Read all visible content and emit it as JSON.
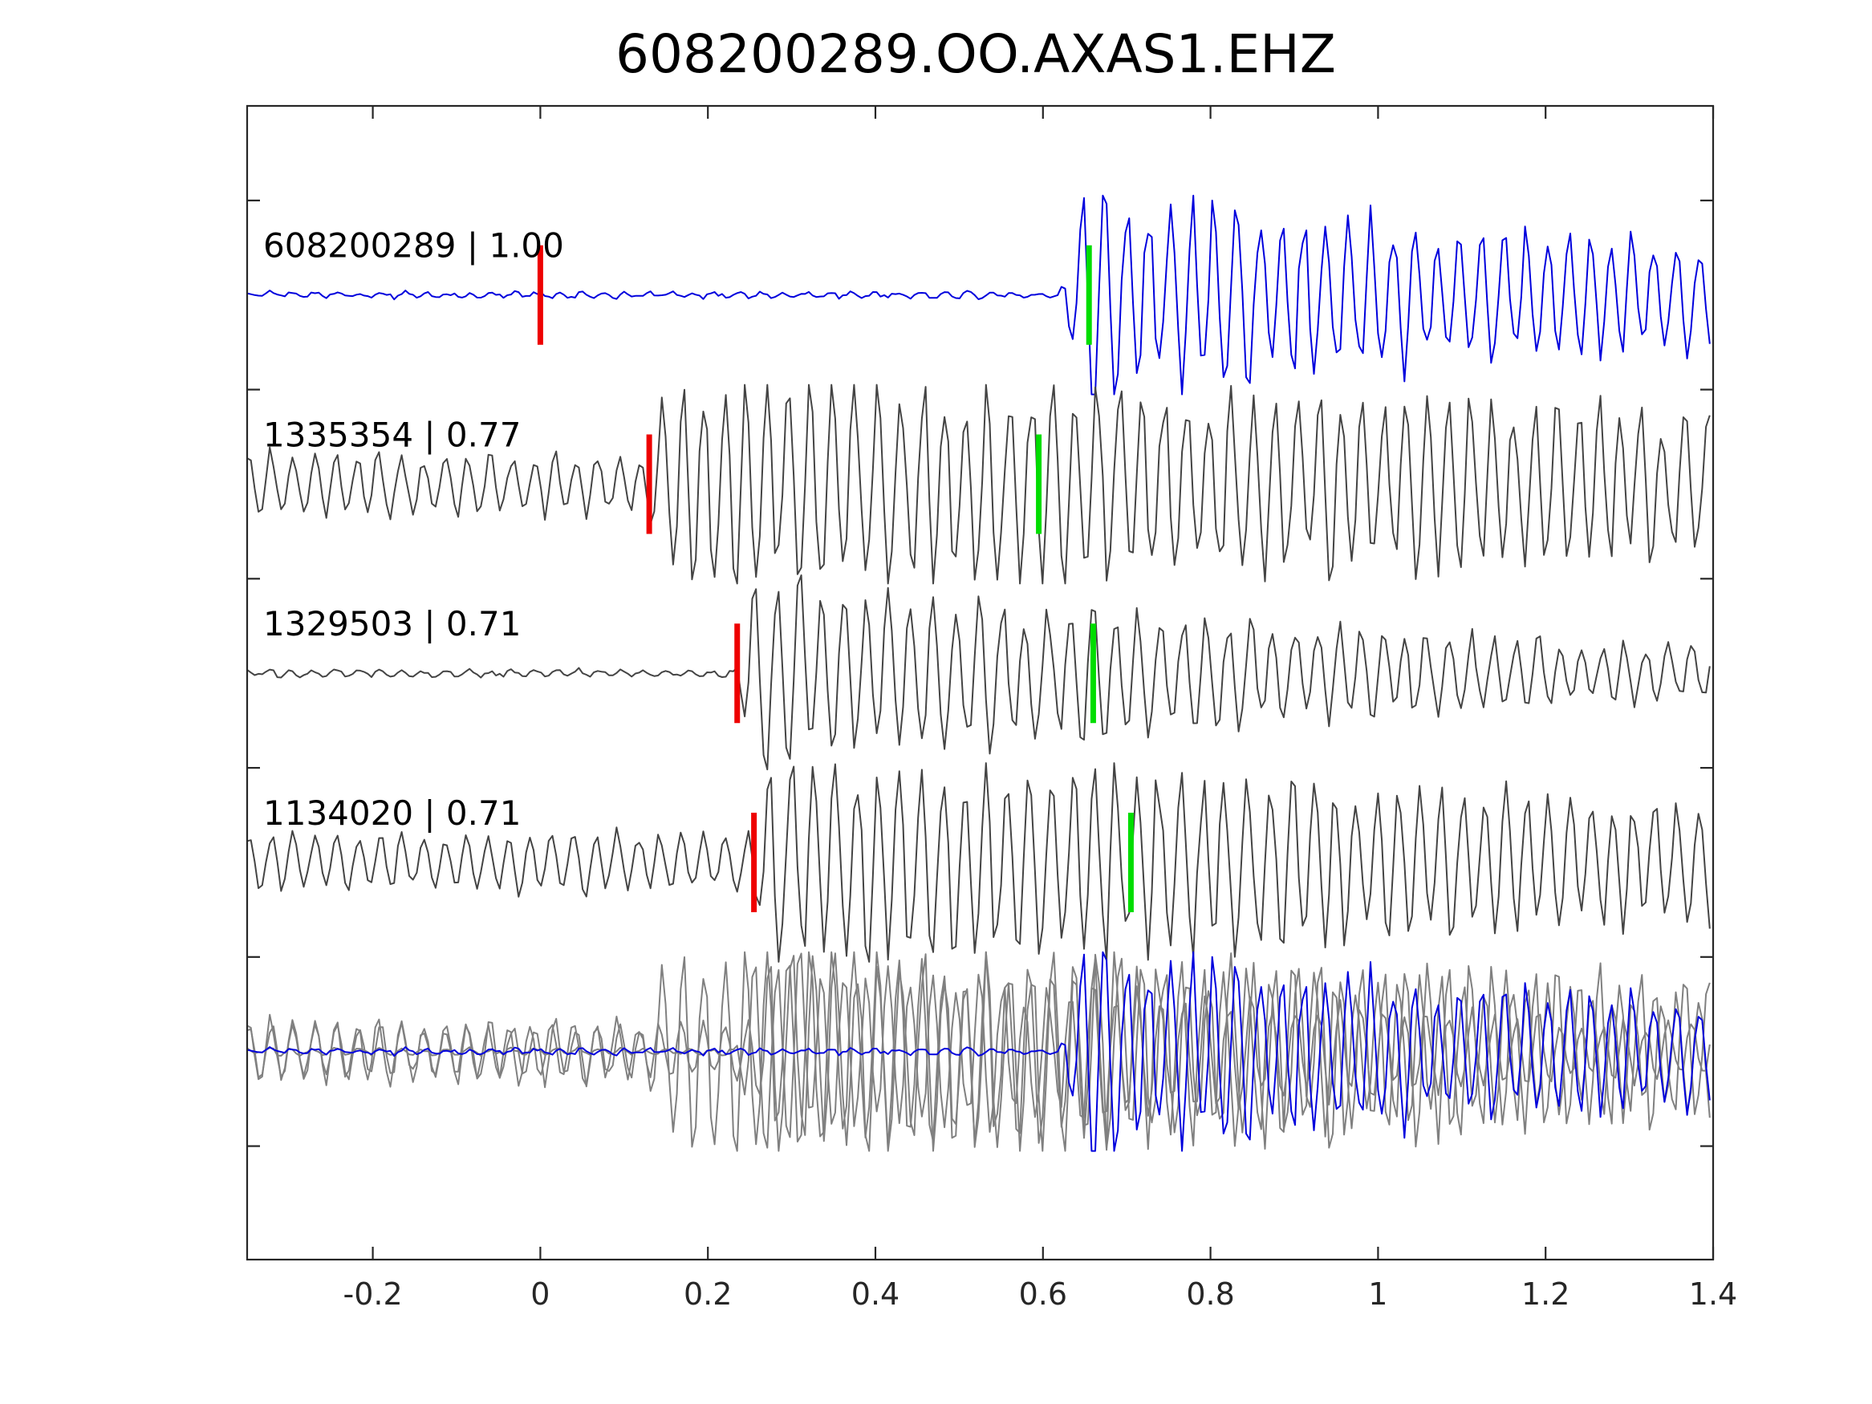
{
  "chart_data": {
    "type": "line",
    "title": "608200289.OO.AXAS1.EHZ",
    "xlabel": "",
    "ylabel": "",
    "xlim": [
      -0.35,
      1.4
    ],
    "x_ticks": [
      -0.2,
      0,
      0.2,
      0.4,
      0.6,
      0.8,
      1,
      1.2,
      1.4
    ],
    "x_tick_labels": [
      "-0.2",
      "0",
      "0.2",
      "0.4",
      "0.6",
      "0.8",
      "1",
      "1.2",
      "1.4"
    ],
    "y_tick_count": 6,
    "grid": false,
    "colors": {
      "reference": "#0000dd",
      "neighbor": "#444444",
      "stack_neighbor": "#808080",
      "p_pick": "#ee0000",
      "s_pick": "#00dd00"
    },
    "traces": [
      {
        "id": "608200289",
        "cc": "1.00",
        "label": "608200289 | 1.00",
        "p_pick": 0.0,
        "s_pick": 0.655,
        "onset": 0.62,
        "pre_noise": 0.025,
        "peak": 1.0,
        "decay": 1.6,
        "period": 0.0268,
        "role": "reference"
      },
      {
        "id": "1335354",
        "cc": "0.77",
        "label": "1335354 | 0.77",
        "p_pick": 0.13,
        "s_pick": 0.595,
        "onset": 0.12,
        "pre_noise": 0.3,
        "peak": 1.0,
        "decay": 0.9,
        "period": 0.0262,
        "role": "neighbor"
      },
      {
        "id": "1329503",
        "cc": "0.71",
        "label": "1329503 | 0.71",
        "p_pick": 0.235,
        "s_pick": 0.66,
        "onset": 0.23,
        "pre_noise": 0.03,
        "peak": 1.0,
        "decay": 2.2,
        "period": 0.0265,
        "role": "neighbor"
      },
      {
        "id": "1134020",
        "cc": "0.71",
        "label": "1134020 | 0.71",
        "p_pick": 0.255,
        "s_pick": 0.705,
        "onset": 0.25,
        "pre_noise": 0.28,
        "peak": 1.0,
        "decay": 1.4,
        "period": 0.0262,
        "role": "neighbor"
      }
    ],
    "overlay_stack": true
  }
}
